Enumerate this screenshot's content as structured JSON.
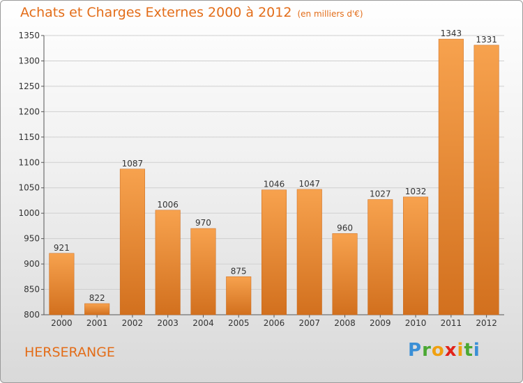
{
  "title": "Achats et Charges Externes 2000 à 2012",
  "subtitle": "(en milliers d'€)",
  "commune": "HERSERANGE",
  "logo": {
    "letters": [
      "P",
      "r",
      "o",
      "x",
      "i",
      "t",
      "i"
    ],
    "colors": [
      "#3a8fd6",
      "#4aa832",
      "#f0a010",
      "#e2231a",
      "#f0a010",
      "#4aa832",
      "#3a8fd6"
    ]
  },
  "colors": {
    "bar_top": "#f7a24e",
    "bar_bottom": "#d2701e",
    "accent": "#e36d19",
    "grid": "#cfcfcf"
  },
  "chart_data": {
    "type": "bar",
    "title": "Achats et Charges Externes 2000 à 2012",
    "subtitle": "(en milliers d'€)",
    "categories": [
      "2000",
      "2001",
      "2002",
      "2003",
      "2004",
      "2005",
      "2006",
      "2007",
      "2008",
      "2009",
      "2010",
      "2011",
      "2012"
    ],
    "values": [
      921,
      822,
      1087,
      1006,
      970,
      875,
      1046,
      1047,
      960,
      1027,
      1032,
      1343,
      1331
    ],
    "ylim": [
      800,
      1350
    ],
    "yticks": [
      800,
      850,
      900,
      950,
      1000,
      1050,
      1100,
      1150,
      1200,
      1250,
      1300,
      1350
    ],
    "grid": true,
    "data_labels": true
  }
}
